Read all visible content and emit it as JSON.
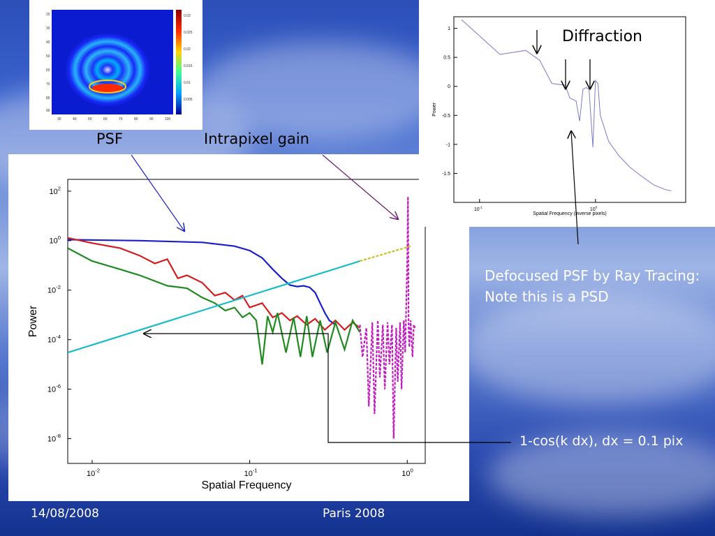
{
  "slide": {
    "label_psf": "PSF",
    "label_intrapixel": "Intrapixel gain",
    "label_diffraction": "Diffraction",
    "defocus_note": "Defocused PSF by Ray Tracing: Note this is a PSD",
    "cosine_note": "1-cos(k dx),  dx = 0.1 pix",
    "footer_date": "14/08/2008",
    "footer_event": "Paris 2008"
  },
  "chart_data": [
    {
      "type": "line",
      "title": "",
      "xlabel": "Spatial Frequency",
      "ylabel": "Power",
      "xscale": "log",
      "yscale": "log",
      "xlim": [
        0.007,
        1.3
      ],
      "ylim": [
        1e-09,
        300
      ],
      "x_ticks": [
        "10",
        "10",
        "10"
      ],
      "x_tick_exp": [
        "-2",
        "-1",
        "0"
      ],
      "y_ticks": [
        "10",
        "10",
        "10",
        "10",
        "10",
        "10"
      ],
      "y_tick_exp": [
        "2",
        "0",
        "-2",
        "-4",
        "-6",
        "-8"
      ],
      "series": [
        {
          "color": "#1a1fc8",
          "style": "solid",
          "x": [
            0.007,
            0.02,
            0.05,
            0.08,
            0.1,
            0.12,
            0.14,
            0.16,
            0.18,
            0.2,
            0.22,
            0.24,
            0.26,
            0.28,
            0.3,
            0.32,
            0.35
          ],
          "y": [
            1.1,
            1.0,
            0.85,
            0.6,
            0.4,
            0.2,
            0.07,
            0.03,
            0.016,
            0.014,
            0.015,
            0.013,
            0.008,
            0.003,
            0.0012,
            0.0006,
            0.0004
          ]
        },
        {
          "color": "#d11f1f",
          "style": "solid",
          "x": [
            0.007,
            0.01,
            0.015,
            0.02,
            0.025,
            0.03,
            0.035,
            0.04,
            0.05,
            0.06,
            0.07,
            0.08,
            0.09,
            0.1,
            0.12,
            0.14,
            0.16,
            0.18,
            0.2,
            0.23,
            0.26,
            0.3,
            0.35,
            0.4,
            0.45,
            0.5
          ],
          "y": [
            1.3,
            0.8,
            0.5,
            0.25,
            0.12,
            0.18,
            0.03,
            0.04,
            0.02,
            0.006,
            0.008,
            0.004,
            0.006,
            0.002,
            0.003,
            0.0008,
            0.0012,
            0.0006,
            0.0009,
            0.0004,
            0.0007,
            0.00025,
            0.0006,
            0.00025,
            0.0005,
            0.0003
          ]
        },
        {
          "color": "#1f8a1f",
          "style": "solid",
          "x": [
            0.007,
            0.01,
            0.015,
            0.02,
            0.03,
            0.04,
            0.05,
            0.06,
            0.07,
            0.08,
            0.09,
            0.1,
            0.11,
            0.12,
            0.13,
            0.14,
            0.15,
            0.17,
            0.19,
            0.21,
            0.23,
            0.25,
            0.28,
            0.31,
            0.35,
            0.4,
            0.45,
            0.5
          ],
          "y": [
            0.5,
            0.15,
            0.07,
            0.04,
            0.015,
            0.012,
            0.005,
            0.003,
            0.0015,
            0.002,
            0.0008,
            0.0012,
            0.0006,
            1e-05,
            0.0009,
            0.0002,
            0.0012,
            3e-05,
            0.0008,
            2e-05,
            0.0009,
            2e-05,
            0.0006,
            3e-05,
            0.0005,
            4e-05,
            0.0006,
            0.0002
          ]
        },
        {
          "color": "#19bcc8",
          "style": "solid",
          "x": [
            0.007,
            0.5
          ],
          "y": [
            3e-05,
            0.15
          ]
        },
        {
          "color": "#c8c21f",
          "style": "dashed",
          "x": [
            0.5,
            1.05
          ],
          "y": [
            0.15,
            0.6
          ]
        },
        {
          "color": "#c01fc0",
          "style": "dashed",
          "x": [
            0.5,
            0.52,
            0.55,
            0.57,
            0.6,
            0.62,
            0.65,
            0.67,
            0.7,
            0.72,
            0.75,
            0.77,
            0.8,
            0.82,
            0.85,
            0.87,
            0.9,
            0.92,
            0.95,
            0.97,
            1.0,
            1.01,
            1.02,
            1.03,
            1.05,
            1.08,
            1.1,
            1.12
          ],
          "y": [
            0.0004,
            2e-05,
            0.0003,
            2e-07,
            0.0005,
            1e-07,
            0.0006,
            3e-06,
            0.0004,
            1e-06,
            0.0005,
            1e-05,
            0.0004,
            1e-08,
            0.0003,
            2e-06,
            0.0005,
            1e-06,
            0.0006,
            3e-05,
            0.2,
            60,
            0.0003,
            5e-05,
            0.0006,
            2e-05,
            0.0004,
            0.0003
          ]
        }
      ]
    },
    {
      "type": "line",
      "title": "",
      "xlabel": "Spatial Frequency (inverse pixels)",
      "ylabel": "Power",
      "xscale": "log",
      "yscale": "linear",
      "xlim": [
        0.06,
        6
      ],
      "ylim": [
        -2,
        1.2
      ],
      "x_ticks": [
        "10",
        "10"
      ],
      "x_tick_exp": [
        "-1",
        "0"
      ],
      "y_ticks": [
        "1",
        "0.5",
        "0",
        "-0.5",
        "-1",
        "-1.5"
      ],
      "series": [
        {
          "color": "#7a7ac8",
          "style": "solid",
          "x": [
            0.07,
            0.15,
            0.25,
            0.33,
            0.42,
            0.55,
            0.6,
            0.68,
            0.73,
            0.78,
            0.83,
            0.88,
            0.95,
            1.0,
            1.05,
            1.1,
            1.3,
            1.6,
            2.0,
            2.5,
            3.2,
            4.0,
            4.5
          ],
          "y": [
            1.15,
            0.55,
            0.62,
            0.45,
            0.05,
            0.02,
            -0.2,
            -0.25,
            -0.6,
            -0.05,
            -0.02,
            -0.05,
            -1.05,
            0.1,
            0.05,
            -0.5,
            -0.95,
            -1.2,
            -1.4,
            -1.55,
            -1.7,
            -1.78,
            -1.8
          ]
        }
      ]
    }
  ]
}
